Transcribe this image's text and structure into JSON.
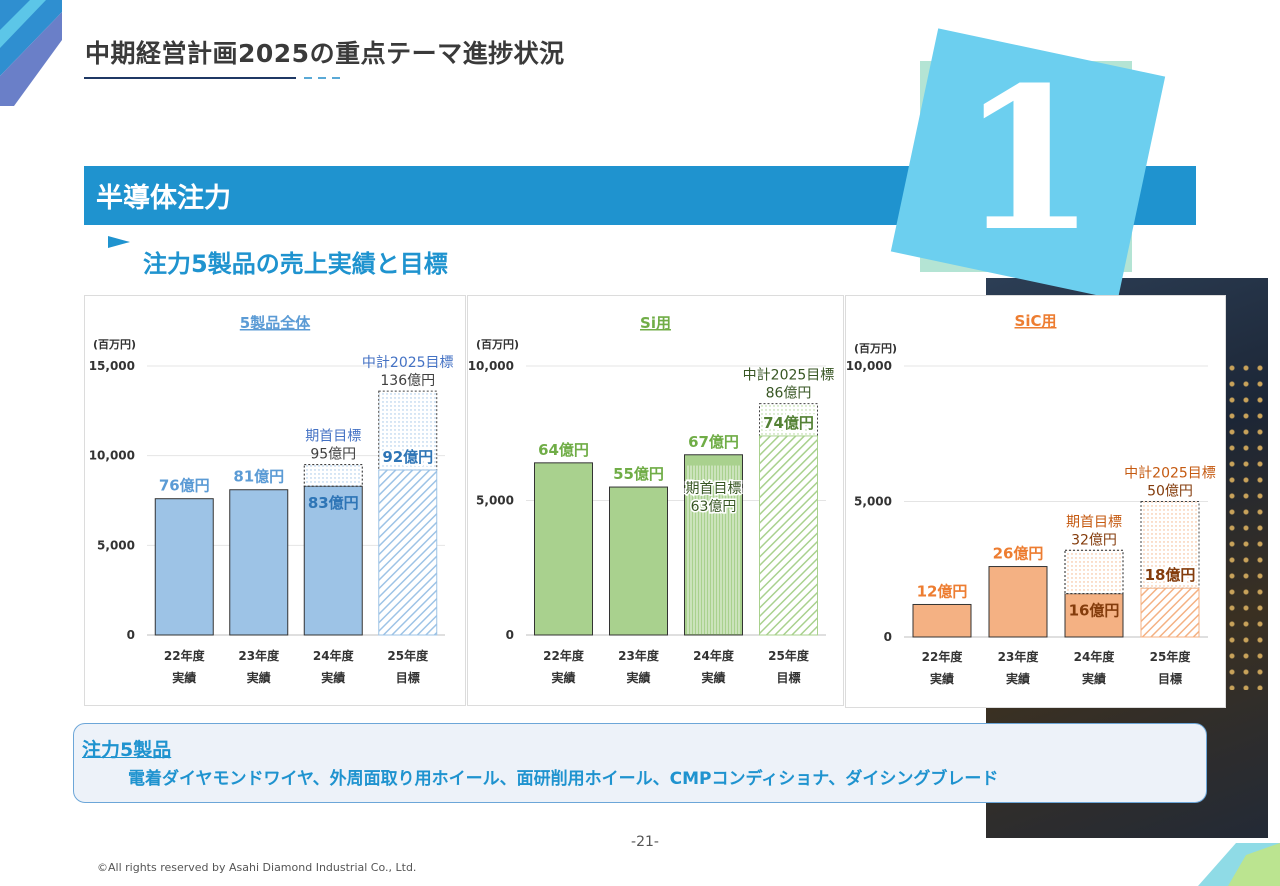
{
  "header": {
    "title": "中期経営計画2025の重点テーマ進捗状況"
  },
  "section": {
    "title": "半導体注力",
    "badge_number": "1"
  },
  "subtitle": "注力5製品の売上実績と目標",
  "colors": {
    "accent_blue": "#1f93cf",
    "navy": "#1f3864",
    "bar_blue": "#9dc3e6",
    "bar_green": "#a9d18e",
    "bar_orange": "#f4b183"
  },
  "chart_data": [
    {
      "type": "bar",
      "title": "5製品全体",
      "unit_label": "(百万円)",
      "ylim": [
        0,
        15000
      ],
      "yticks": [
        0,
        5000,
        10000,
        15000
      ],
      "ytick_labels": [
        "0",
        "5,000",
        "10,000",
        "15,000"
      ],
      "categories": [
        "22年度 実績",
        "23年度 実績",
        "24年度 実績",
        "25年度 目標"
      ],
      "category_lines": [
        [
          "22年度",
          "実績"
        ],
        [
          "23年度",
          "実績"
        ],
        [
          "24年度",
          "実績"
        ],
        [
          "25年度",
          "目標"
        ]
      ],
      "color": "#9dc3e6",
      "label_color": "#5b9bd5",
      "dark_color": "#2e75b6",
      "series": [
        {
          "values": [
            7600,
            8100,
            8300,
            9200
          ],
          "labels": [
            "76億円",
            "81億円",
            "83億円",
            "92億円"
          ]
        }
      ],
      "targets": [
        {
          "index": 2,
          "value": 9500,
          "caption": "期首目標",
          "label": "95億円"
        },
        {
          "index": 3,
          "value": 13600,
          "caption": "中計2025目標",
          "label": "136億円"
        }
      ],
      "grid": true
    },
    {
      "type": "bar",
      "title": "Si用",
      "unit_label": "(百万円)",
      "ylim": [
        0,
        10000
      ],
      "yticks": [
        0,
        5000,
        10000
      ],
      "ytick_labels": [
        "0",
        "5,000",
        "10,000"
      ],
      "categories": [
        "22年度 実績",
        "23年度 実績",
        "24年度 実績",
        "25年度 目標"
      ],
      "category_lines": [
        [
          "22年度",
          "実績"
        ],
        [
          "23年度",
          "実績"
        ],
        [
          "24年度",
          "実績"
        ],
        [
          "25年度",
          "目標"
        ]
      ],
      "color": "#a9d18e",
      "label_color": "#70ad47",
      "dark_color": "#548235",
      "series": [
        {
          "values": [
            6400,
            5500,
            6700,
            7400
          ],
          "labels": [
            "64億円",
            "55億円",
            "67億円",
            "74億円"
          ]
        }
      ],
      "targets": [
        {
          "index": 2,
          "value": 6300,
          "caption": "期首目標",
          "label": "63億円"
        },
        {
          "index": 3,
          "value": 8600,
          "caption": "中計2025目標",
          "label": "86億円"
        }
      ],
      "grid": true
    },
    {
      "type": "bar",
      "title": "SiC用",
      "unit_label": "(百万円)",
      "ylim": [
        0,
        10000
      ],
      "yticks": [
        0,
        5000,
        10000
      ],
      "ytick_labels": [
        "0",
        "5,000",
        "10,000"
      ],
      "categories": [
        "22年度 実績",
        "23年度 実績",
        "24年度 実績",
        "25年度 目標"
      ],
      "category_lines": [
        [
          "22年度",
          "実績"
        ],
        [
          "23年度",
          "実績"
        ],
        [
          "24年度",
          "実績"
        ],
        [
          "25年度",
          "目標"
        ]
      ],
      "color": "#f4b183",
      "label_color": "#ed7d31",
      "dark_color": "#843c0c",
      "series": [
        {
          "values": [
            1200,
            2600,
            1600,
            1800
          ],
          "labels": [
            "12億円",
            "26億円",
            "16億円",
            "18億円"
          ]
        }
      ],
      "targets": [
        {
          "index": 2,
          "value": 3200,
          "caption": "期首目標",
          "label": "32億円"
        },
        {
          "index": 3,
          "value": 5000,
          "caption": "中計2025目標",
          "label": "50億円"
        }
      ],
      "grid": true
    }
  ],
  "info": {
    "heading": "注力5製品",
    "text": "電着ダイヤモンドワイヤ、外周面取り用ホイール、面研削用ホイール、CMPコンディショナ、ダイシングブレード"
  },
  "footer": {
    "page_number": "-21-",
    "copyright": "©All rights reserved by Asahi Diamond Industrial Co., Ltd."
  }
}
